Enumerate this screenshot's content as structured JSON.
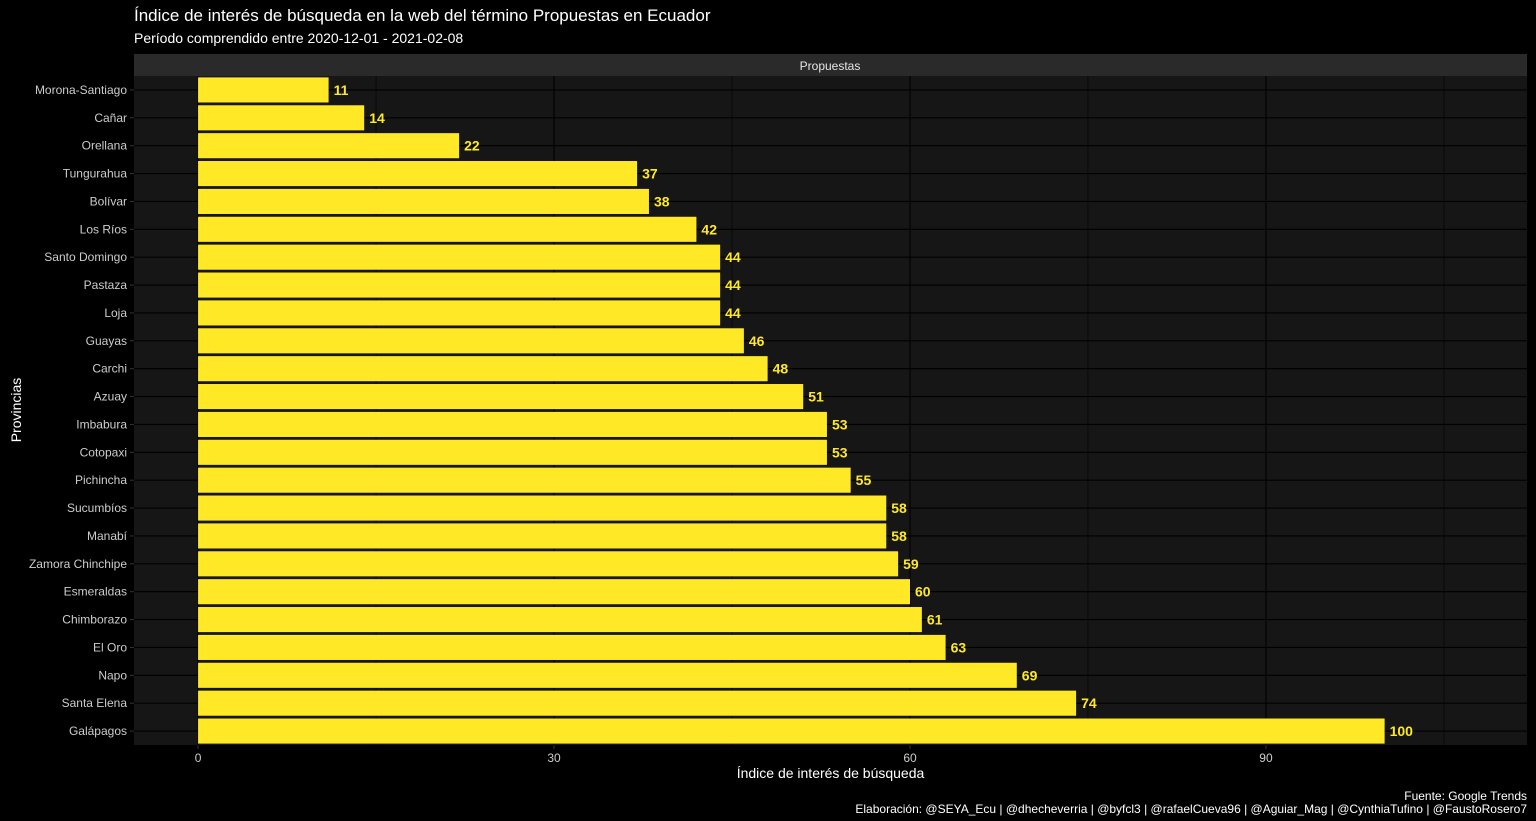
{
  "chart_data": {
    "type": "bar",
    "orientation": "horizontal",
    "title": "Índice de interés de búsqueda en la web del término Propuestas en Ecuador",
    "subtitle": "Período comprendido entre 2020-12-01 - 2021-02-08",
    "facet_label": "Propuestas",
    "xlabel": "Índice de interés de búsqueda",
    "ylabel": "Provincias",
    "xlim": [
      -5.4,
      112
    ],
    "x_ticks": [
      0,
      30,
      60,
      90
    ],
    "grid": true,
    "legend": "none",
    "caption_lines": [
      "Fuente: Google Trends",
      "Elaboración: @SEYA_Ecu | @dhecheverria | @byfcl3 | @rafaelCueva96 | @Aguiar_Mag | @CynthiaTufino | @FaustoRosero7"
    ],
    "colors": {
      "bar": "#FFE926",
      "label": "#FFE926",
      "panel": "#161616",
      "strip": "#2a2a2a",
      "grid": "#000000",
      "text": "#ffffff",
      "tick_text": "#cccccc"
    },
    "categories": [
      "Morona-Santiago",
      "Cañar",
      "Orellana",
      "Tungurahua",
      "Bolívar",
      "Los Ríos",
      "Santo Domingo",
      "Pastaza",
      "Loja",
      "Guayas",
      "Carchi",
      "Azuay",
      "Imbabura",
      "Cotopaxi",
      "Pichincha",
      "Sucumbíos",
      "Manabí",
      "Zamora Chinchipe",
      "Esmeraldas",
      "Chimborazo",
      "El Oro",
      "Napo",
      "Santa Elena",
      "Galápagos"
    ],
    "values": [
      11,
      14,
      22,
      37,
      38,
      42,
      44,
      44,
      44,
      46,
      48,
      51,
      53,
      53,
      55,
      58,
      58,
      59,
      60,
      61,
      63,
      69,
      74,
      100
    ]
  }
}
